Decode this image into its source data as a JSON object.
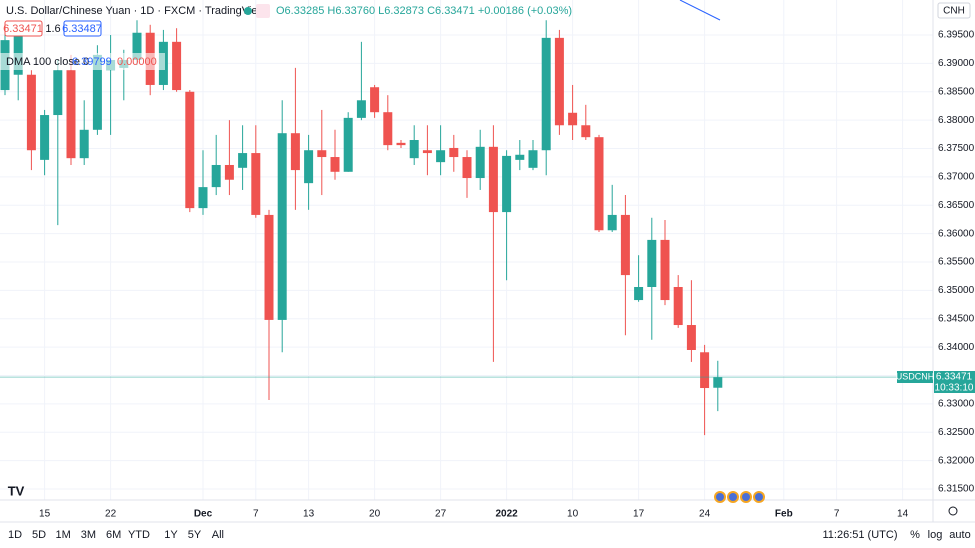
{
  "header": {
    "title": "U.S. Dollar/Chinese Yuan · 1D · FXCM · TradingView",
    "ohlc": "O6.33285 H6.33760 L6.32873 C6.33471 +0.00186 (+0.03%)",
    "bid": "6.33471",
    "spread": "1.6",
    "ask": "6.33487",
    "indicator": "DMA 100 close 0",
    "indicator_value": "6.39799",
    "indicator_offset": "0.00000",
    "currency": "CNH"
  },
  "price_tag": {
    "symbol": "USDCNH",
    "price": "6.33471",
    "countdown": "10:33:10"
  },
  "toolbar": {
    "ranges": [
      "1D",
      "5D",
      "1M",
      "3M",
      "6M",
      "YTD",
      "1Y",
      "5Y",
      "All"
    ],
    "clock": "11:26:51 (UTC)",
    "percent": "%",
    "log": "log",
    "auto": "auto"
  },
  "chart_data": {
    "type": "candlestick",
    "up_color": "#26a69a",
    "down_color": "#ef5350",
    "grid": true,
    "ylim": [
      6.31307,
      6.40117
    ],
    "yticks": [
      {
        "value": 6.395,
        "label": "6.39500"
      },
      {
        "value": 6.39,
        "label": "6.39000"
      },
      {
        "value": 6.385,
        "label": "6.38500"
      },
      {
        "value": 6.38,
        "label": "6.38000"
      },
      {
        "value": 6.375,
        "label": "6.37500"
      },
      {
        "value": 6.37,
        "label": "6.37000"
      },
      {
        "value": 6.365,
        "label": "6.36500"
      },
      {
        "value": 6.36,
        "label": "6.36000"
      },
      {
        "value": 6.355,
        "label": "6.35500"
      },
      {
        "value": 6.35,
        "label": "6.35000"
      },
      {
        "value": 6.345,
        "label": "6.34500"
      },
      {
        "value": 6.34,
        "label": "6.34000"
      },
      {
        "value": 6.335,
        "label": "6.33500"
      },
      {
        "value": 6.33,
        "label": "6.33000"
      },
      {
        "value": 6.325,
        "label": "6.32500"
      },
      {
        "value": 6.32,
        "label": "6.32000"
      },
      {
        "value": 6.315,
        "label": "6.31500"
      }
    ],
    "categories": [
      null,
      null,
      null,
      "15",
      null,
      null,
      null,
      null,
      "22",
      null,
      null,
      null,
      null,
      null,
      null,
      "Dec",
      null,
      null,
      null,
      "7",
      null,
      null,
      null,
      "13",
      null,
      null,
      null,
      null,
      "20",
      null,
      null,
      null,
      null,
      "27",
      null,
      null,
      null,
      null,
      "2022",
      null,
      null,
      null,
      null,
      "10",
      null,
      null,
      null,
      null,
      "17",
      null,
      null,
      null,
      null,
      "24",
      null,
      null,
      null,
      null,
      null,
      "Feb",
      null,
      null,
      null,
      "7",
      null,
      null,
      null,
      null,
      "14",
      null,
      null
    ],
    "open": [
      6.3853,
      6.388,
      6.388,
      6.373,
      6.3809,
      6.3888,
      6.3733,
      6.3783,
      6.3888,
      6.3892,
      6.3906,
      6.3954,
      6.3862,
      6.3938,
      6.385,
      6.3645,
      6.3682,
      6.3721,
      6.3716,
      6.3742,
      6.3633,
      6.3448,
      6.3777,
      6.3689,
      6.3747,
      6.3735,
      6.3709,
      6.3804,
      6.3858,
      6.3814,
      6.376,
      6.3733,
      6.3747,
      6.3726,
      6.3751,
      6.3735,
      6.3698,
      6.3753,
      6.3638,
      6.373,
      6.3716,
      6.3747,
      6.3945,
      6.3813,
      6.3791,
      6.377,
      6.3606,
      6.3633,
      6.3483,
      6.3506,
      6.3589,
      6.3506,
      6.3439,
      6.3391,
      6.33285,
      null,
      null,
      null,
      null,
      null,
      null,
      null,
      null,
      null,
      null,
      null,
      null,
      null,
      null,
      null,
      null
    ],
    "high": [
      6.3959,
      6.3968,
      6.3888,
      6.3818,
      6.3906,
      6.3915,
      6.3835,
      6.3932,
      6.395,
      6.3924,
      6.3976,
      6.3968,
      6.3959,
      6.3962,
      6.3853,
      6.3747,
      6.3774,
      6.38,
      6.3791,
      6.3791,
      6.3642,
      6.3835,
      6.3892,
      6.3774,
      6.3818,
      6.3783,
      6.3814,
      6.3938,
      6.3862,
      6.3844,
      6.3765,
      6.3791,
      6.3791,
      6.3791,
      6.3774,
      6.3747,
      6.3783,
      6.3791,
      6.3747,
      6.3765,
      6.3765,
      6.3976,
      6.3959,
      6.3862,
      6.3827,
      6.3774,
      6.3686,
      6.3668,
      6.3562,
      6.3628,
      6.3624,
      6.3527,
      6.3518,
      6.3404,
      6.3376,
      null,
      null,
      null,
      null,
      null,
      null,
      null,
      null,
      null,
      null,
      null,
      null,
      null,
      null,
      null,
      null
    ],
    "low": [
      6.3844,
      6.3835,
      6.3712,
      6.3703,
      6.3615,
      6.3721,
      6.3721,
      6.3774,
      6.3774,
      6.3835,
      6.3897,
      6.3844,
      6.3853,
      6.385,
      6.3638,
      6.3633,
      6.3668,
      6.3668,
      6.3677,
      6.3628,
      6.3307,
      6.3391,
      6.3642,
      6.3642,
      6.3668,
      6.3695,
      6.3709,
      6.38,
      6.3804,
      6.3747,
      6.3751,
      6.3721,
      6.3703,
      6.3703,
      6.3709,
      6.3663,
      6.3677,
      6.3374,
      6.3518,
      6.3712,
      6.3712,
      6.3703,
      6.3774,
      6.3765,
      6.3765,
      6.3603,
      6.3603,
      6.3421,
      6.348,
      6.3413,
      6.3474,
      6.3434,
      6.3374,
      6.3245,
      6.32873,
      null,
      null,
      null,
      null,
      null,
      null,
      null,
      null,
      null,
      null,
      null,
      null,
      null,
      null,
      null,
      null
    ],
    "close": [
      6.3941,
      6.395,
      6.3747,
      6.3809,
      6.3888,
      6.3733,
      6.3783,
      6.3915,
      6.3906,
      6.3906,
      6.3954,
      6.3862,
      6.3938,
      6.3853,
      6.3645,
      6.3682,
      6.3721,
      6.3695,
      6.3742,
      6.3633,
      6.3448,
      6.3777,
      6.3712,
      6.3747,
      6.3735,
      6.3709,
      6.3804,
      6.3835,
      6.3814,
      6.3756,
      6.3756,
      6.3765,
      6.3742,
      6.3747,
      6.3735,
      6.3698,
      6.3753,
      6.3638,
      6.3737,
      6.3739,
      6.3747,
      6.3945,
      6.3791,
      6.3791,
      6.377,
      6.3606,
      6.3633,
      6.3527,
      6.3506,
      6.3589,
      6.3483,
      6.3439,
      6.3395,
      6.3328,
      6.33471,
      null,
      null,
      null,
      null,
      null,
      null,
      null,
      null,
      null,
      null,
      null,
      null,
      null,
      null,
      null,
      null
    ]
  }
}
